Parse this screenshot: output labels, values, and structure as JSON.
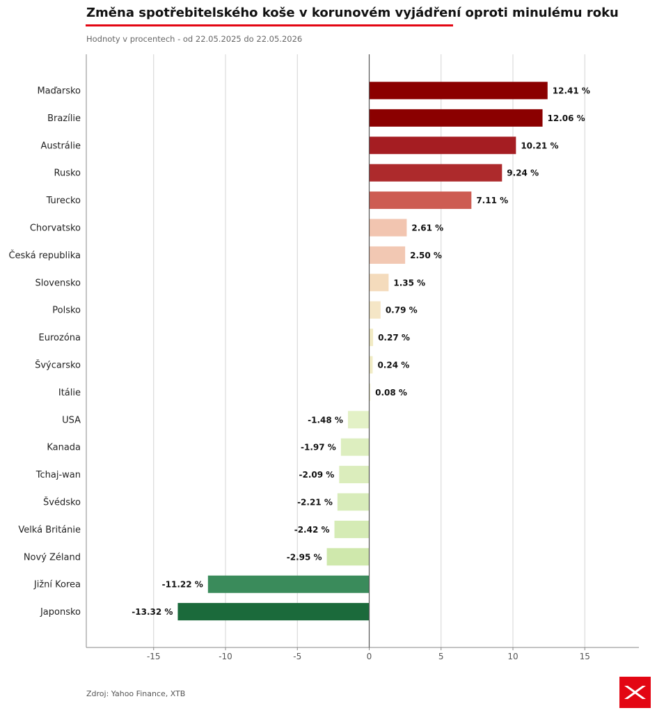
{
  "header": {
    "title": "Změna spotřebitelského koše v korunovém vyjádření oproti minulému roku",
    "subtitle": "Hodnoty v procentech - od 22.05.2025 do 22.05.2026"
  },
  "footer": {
    "source": "Zdroj: Yahoo Finance, XTB"
  },
  "logo": {
    "name": "xtb-logo-icon",
    "color": "#e30613"
  },
  "chart_data": {
    "type": "bar",
    "orientation": "horizontal",
    "categories": [
      "Maďarsko",
      "Brazílie",
      "Austrálie",
      "Rusko",
      "Turecko",
      "Chorvatsko",
      "Česká republika",
      "Slovensko",
      "Polsko",
      "Eurozóna",
      "Švýcarsko",
      "Itálie",
      "USA",
      "Kanada",
      "Tchaj-wan",
      "Švédsko",
      "Velká Británie",
      "Nový Zéland",
      "Jižní Korea",
      "Japonsko"
    ],
    "values": [
      12.41,
      12.06,
      10.21,
      9.24,
      7.11,
      2.61,
      2.5,
      1.35,
      0.79,
      0.27,
      0.24,
      0.08,
      -1.48,
      -1.97,
      -2.09,
      -2.21,
      -2.42,
      -2.95,
      -11.22,
      -13.32
    ],
    "value_labels": [
      "12.41 %",
      "12.06 %",
      "10.21 %",
      "9.24 %",
      "7.11 %",
      "2.61 %",
      "2.50 %",
      "1.35 %",
      "0.79 %",
      "0.27 %",
      "0.24 %",
      "0.08 %",
      "-1.48 %",
      "-1.97 %",
      "-2.09 %",
      "-2.21 %",
      "-2.42 %",
      "-2.95 %",
      "-11.22 %",
      "-13.32 %"
    ],
    "colors": [
      "#8b0000",
      "#8b0000",
      "#a51d22",
      "#ad2a2c",
      "#cd5c52",
      "#f2c5b0",
      "#f2c8b3",
      "#f4dbbc",
      "#f5e6c6",
      "#f2ebc4",
      "#f1ecc5",
      "#f3efcc",
      "#e3f1c6",
      "#ddeebf",
      "#dbedbc",
      "#d8ecba",
      "#d5ebb5",
      "#cfe8ac",
      "#3a8b5b",
      "#1b6a3b"
    ],
    "xlim": [
      -19.7,
      18.7
    ],
    "xticks": [
      -15,
      -10,
      -5,
      0,
      5,
      10,
      15
    ],
    "xtick_labels": [
      "-15",
      "-10",
      "-5",
      "0",
      "5",
      "10",
      "15"
    ],
    "grid": "vertical",
    "axis_color": "#888888",
    "grid_color": "#d4d4d4",
    "zero_line_color": "#555555"
  }
}
